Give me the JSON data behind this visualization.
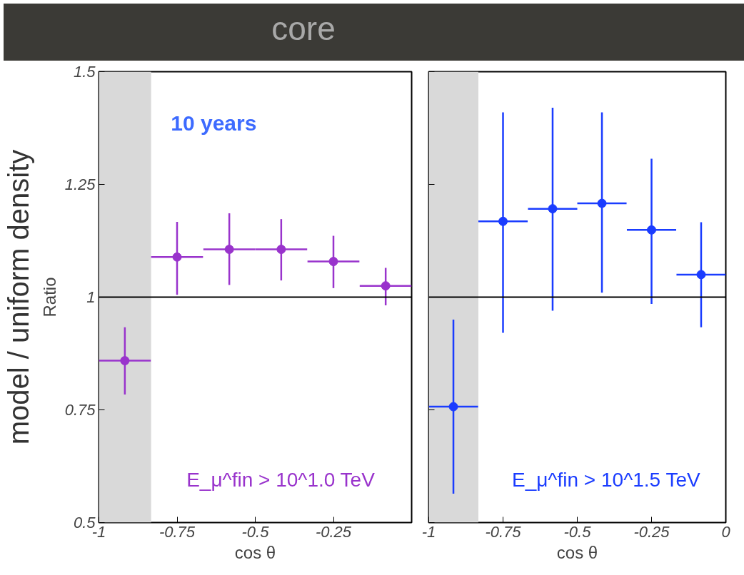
{
  "chart_data": [
    {
      "type": "scatter",
      "title": "core",
      "ylabel": "Ratio",
      "xlabel": "cos θ",
      "annotations": [
        "model / uniform density",
        "10 years",
        "E_μ^fin > 10^1.0 TeV"
      ],
      "x": [
        -0.917,
        -0.75,
        -0.583,
        -0.417,
        -0.25,
        -0.083
      ],
      "series": [
        {
          "color": "#9933cc",
          "values": [
            0.859,
            1.089,
            1.106,
            1.106,
            1.079,
            1.025
          ],
          "errors": [
            [
              0.784,
              0.933
            ],
            [
              1.005,
              1.167
            ],
            [
              1.027,
              1.186
            ],
            [
              1.037,
              1.173
            ],
            [
              1.02,
              1.136
            ],
            [
              0.982,
              1.065
            ]
          ],
          "xerrors": [
            0.083,
            0.083,
            0.083,
            0.083,
            0.083,
            0.083
          ]
        }
      ],
      "xlim": [
        -1,
        0
      ],
      "ylim": [
        0.5,
        1.5
      ],
      "xticks": [
        -1,
        -0.75,
        -0.5,
        -0.25
      ],
      "yticks": [
        0.5,
        0.75,
        {
          "value": 1,
          "label": "1"
        },
        1.25,
        1.5
      ],
      "bands": [
        {
          "axis": "x",
          "from": -1,
          "to": -0.833,
          "color": "#d9d9d9"
        }
      ],
      "ref_lines": [
        {
          "axis": "y",
          "value": 1,
          "color": "#000000"
        }
      ],
      "marker": "circle",
      "grid": false
    },
    {
      "type": "scatter",
      "xlabel": "cos θ",
      "annotations": [
        "E_μ^fin > 10^1.5 TeV"
      ],
      "x": [
        -0.917,
        -0.75,
        -0.583,
        -0.417,
        -0.25,
        -0.083
      ],
      "series": [
        {
          "color": "#1a3cff",
          "values": [
            0.757,
            1.168,
            1.196,
            1.208,
            1.149,
            1.05
          ],
          "errors": [
            [
              0.564,
              0.95
            ],
            [
              0.921,
              1.41
            ],
            [
              0.97,
              1.42
            ],
            [
              1.01,
              1.41
            ],
            [
              0.985,
              1.307
            ],
            [
              0.933,
              1.166
            ]
          ],
          "xerrors": [
            0.083,
            0.083,
            0.083,
            0.083,
            0.083,
            0.083
          ]
        }
      ],
      "xlim": [
        -1,
        0
      ],
      "ylim": [
        0.5,
        1.5
      ],
      "xticks": [
        -1,
        -0.75,
        -0.5,
        -0.25,
        0
      ],
      "yticks": [
        0.5,
        0.75,
        {
          "value": 1,
          "label": null
        },
        1.25,
        1.5
      ],
      "tick_labels": "x",
      "bands": [
        {
          "axis": "x",
          "from": -1,
          "to": -0.833,
          "color": "#d9d9d9"
        }
      ],
      "ref_lines": [
        {
          "axis": "y",
          "value": 1,
          "color": "#000000"
        }
      ],
      "marker": "circle",
      "grid": false
    }
  ]
}
